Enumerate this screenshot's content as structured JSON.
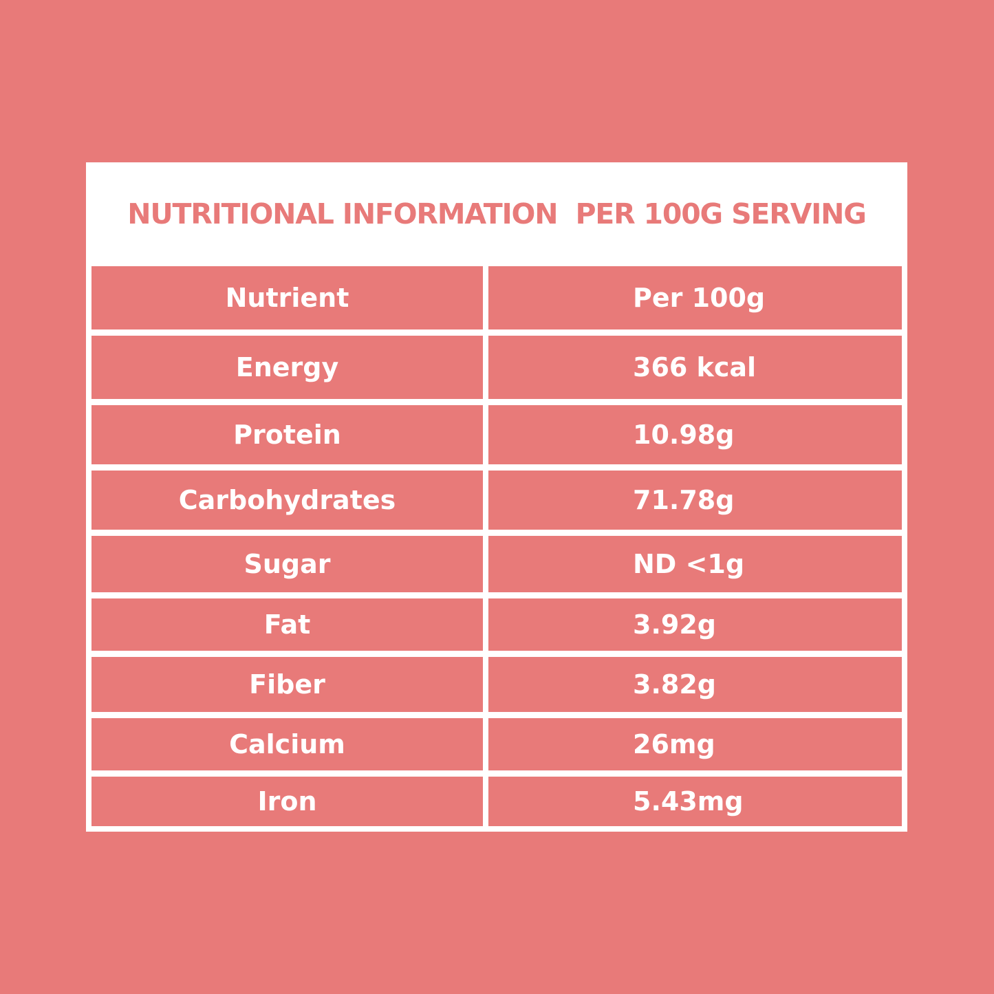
{
  "title": "NUTRITIONAL INFORMATION  PER 100G SERVING",
  "colors": {
    "background": "#e87a79",
    "card": "#ffffff",
    "title_text": "#e87a79",
    "cell_fill": "#e87a79",
    "cell_text": "#ffffff"
  },
  "table": {
    "header": {
      "nutrient": "Nutrient",
      "value": "Per 100g"
    },
    "rows": [
      {
        "nutrient": "Energy",
        "value": "366 kcal"
      },
      {
        "nutrient": "Protein",
        "value": "10.98g"
      },
      {
        "nutrient": "Carbohydrates",
        "value": "71.78g"
      },
      {
        "nutrient": "Sugar",
        "value": "ND <1g"
      },
      {
        "nutrient": "Fat",
        "value": "3.92g"
      },
      {
        "nutrient": "Fiber",
        "value": "3.82g"
      },
      {
        "nutrient": "Calcium",
        "value": "26mg"
      },
      {
        "nutrient": "Iron",
        "value": "5.43mg"
      }
    ]
  }
}
